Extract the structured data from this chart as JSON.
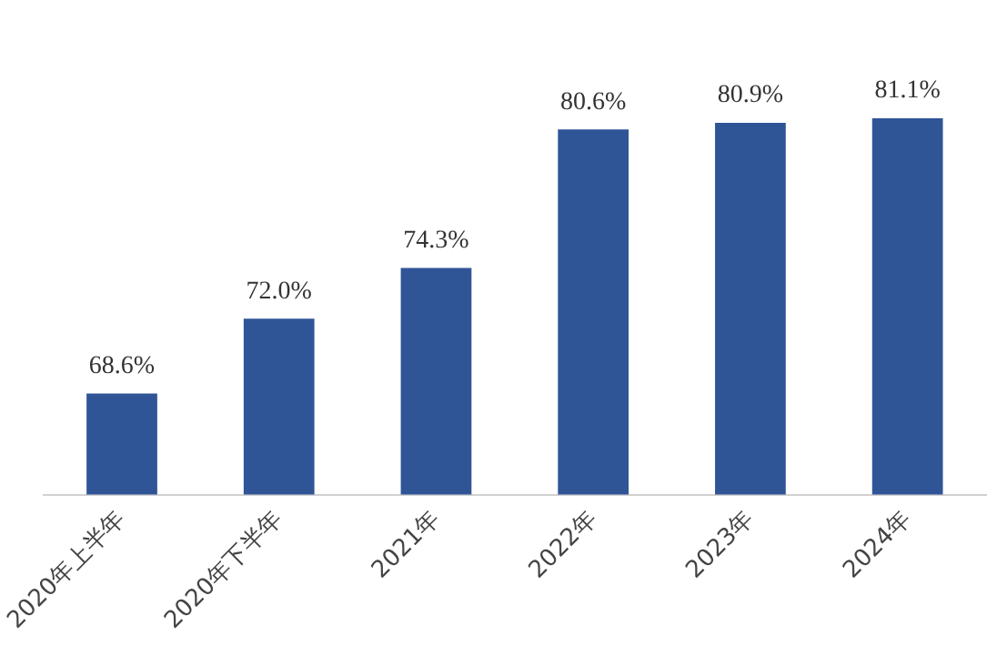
{
  "chart_data": {
    "type": "bar",
    "categories": [
      "2020年上半年",
      "2020年下半年",
      "2021年",
      "2022年",
      "2023年",
      "2024年"
    ],
    "values": [
      68.6,
      72.0,
      74.3,
      80.6,
      80.9,
      81.1
    ],
    "value_labels": [
      "68.6%",
      "72.0%",
      "74.3%",
      "80.6%",
      "80.9%",
      "81.1%"
    ],
    "color": "#2f5597",
    "tick_labels": "x",
    "grid": false,
    "legend": false
  }
}
